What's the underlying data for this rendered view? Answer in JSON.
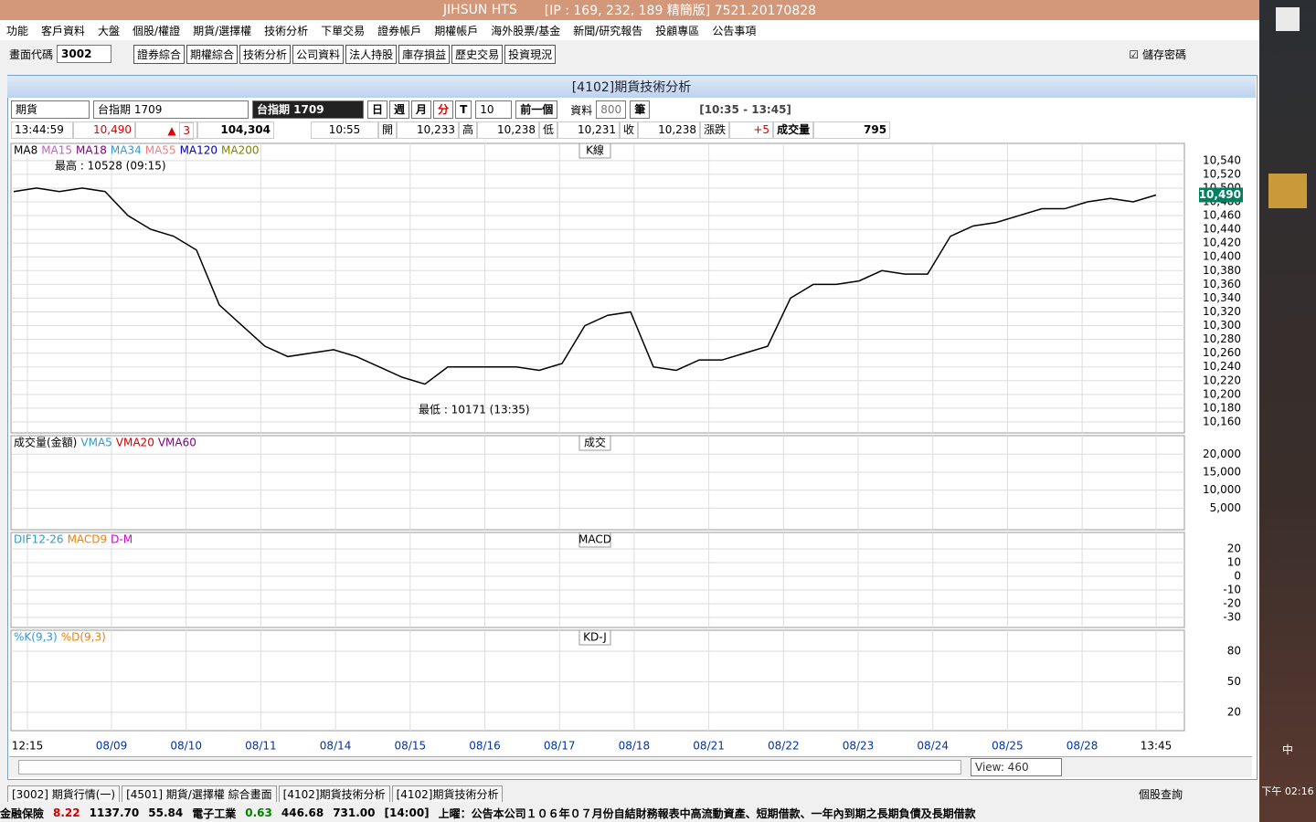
{
  "window": {
    "title": "JIHSUN HTS",
    "ip": "[IP : 169, 232, 189 精簡版] 7521.20170828"
  },
  "menu": [
    "功能",
    "客戶資料",
    "大盤",
    "個股/權證",
    "期貨/選擇權",
    "技術分析",
    "下單交易",
    "證券帳戶",
    "期權帳戶",
    "海外股票/基金",
    "新聞/研究報告",
    "投顧專區",
    "公告事項"
  ],
  "toolbar": {
    "label": "畫面代碼",
    "code": "3002",
    "buttons": [
      "證券綜合",
      "期權綜合",
      "技術分析",
      "公司資料",
      "法人持股",
      "庫存損益",
      "歷史交易",
      "投資現況"
    ],
    "save": "儲存密碼"
  },
  "panel": {
    "title": "[4102]期貨技術分析",
    "market": "期貨",
    "symbol": "台指期 1709",
    "symbol_box": "台指期 1709",
    "periods": [
      "日",
      "週",
      "月",
      "分",
      "T"
    ],
    "interval": "10",
    "prev": "前一個",
    "data_label": "資料",
    "data_count": "800",
    "unit": "筆",
    "range": "[10:35 - 13:45]"
  },
  "quote": {
    "time": "13:44:59",
    "price": "10,490",
    "change": "3",
    "volume_total": "104,304",
    "bar_time": "10:55",
    "open_label": "開",
    "open": "10,233",
    "high_label": "高",
    "high": "10,238",
    "low_label": "低",
    "low": "10,231",
    "close_label": "收",
    "close": "10,238",
    "chg_label": "漲跌",
    "chg": "+5",
    "vol_label": "成交量",
    "vol": "795"
  },
  "chart_data": [
    {
      "type": "line",
      "title": "K線",
      "legend": [
        {
          "name": "MA8",
          "color": "#000000"
        },
        {
          "name": "MA15",
          "color": "#c060c0"
        },
        {
          "name": "MA18",
          "color": "#800080"
        },
        {
          "name": "MA34",
          "color": "#3399cc"
        },
        {
          "name": "MA55",
          "color": "#f08080"
        },
        {
          "name": "MA120",
          "color": "#0000c0"
        },
        {
          "name": "MA200",
          "color": "#808000"
        }
      ],
      "high_note": "最高 : 10528 (09:15)",
      "low_note": "最低 : 10171 (13:35)",
      "last": 10490,
      "last_label": "10,490",
      "ylim": [
        10144,
        10565
      ],
      "yticks": [
        {
          "value": 10540,
          "label": "10,540"
        },
        {
          "value": 10520,
          "label": "10,520"
        },
        {
          "value": 10500,
          "label": "10,500"
        },
        {
          "value": 10480,
          "label": "10,480"
        },
        {
          "value": 10460,
          "label": "10,460"
        },
        {
          "value": 10440,
          "label": "10,440"
        },
        {
          "value": 10420,
          "label": "10,420"
        },
        {
          "value": 10400,
          "label": "10,400"
        },
        {
          "value": 10380,
          "label": "10,380"
        },
        {
          "value": 10360,
          "label": "10,360"
        },
        {
          "value": 10340,
          "label": "10,340"
        },
        {
          "value": 10320,
          "label": "10,320"
        },
        {
          "value": 10300,
          "label": "10,300"
        },
        {
          "value": 10280,
          "label": "10,280"
        },
        {
          "value": 10260,
          "label": "10,260"
        },
        {
          "value": 10240,
          "label": "10,240"
        },
        {
          "value": 10220,
          "label": "10,220"
        },
        {
          "value": 10200,
          "label": "10,200"
        },
        {
          "value": 10180,
          "label": "10,180"
        },
        {
          "value": 10160,
          "label": "10,160"
        }
      ],
      "series": [
        {
          "name": "MA8",
          "color": "#000000",
          "values": [
            10495,
            10500,
            10495,
            10500,
            10495,
            10460,
            10440,
            10430,
            10410,
            10330,
            10300,
            10270,
            10255,
            10260,
            10265,
            10255,
            10240,
            10225,
            10215,
            10240,
            10240,
            10240,
            10240,
            10235,
            10245,
            10300,
            10315,
            10320,
            10240,
            10235,
            10250,
            10250,
            10260,
            10270,
            10340,
            10360,
            10360,
            10365,
            10380,
            10375,
            10375,
            10430,
            10445,
            10450,
            10460,
            10470,
            10470,
            10480,
            10485,
            10480,
            10490
          ]
        }
      ]
    },
    {
      "type": "bar",
      "title": "成交",
      "legend": [
        {
          "name": "成交量(金額)",
          "color": "#000000"
        },
        {
          "name": "VMA5",
          "color": "#3399cc"
        },
        {
          "name": "VMA20",
          "color": "#d00000"
        },
        {
          "name": "VMA60",
          "color": "#800080"
        }
      ],
      "ylim": [
        -1000,
        25150
      ],
      "yticks": [
        {
          "value": 20000,
          "label": "20,000"
        },
        {
          "value": 15000,
          "label": "15,000"
        },
        {
          "value": 10000,
          "label": "10,000"
        },
        {
          "value": 5000,
          "label": "5,000"
        }
      ]
    },
    {
      "type": "line",
      "title": "MACD",
      "legend": [
        {
          "name": "DIF12-26",
          "color": "#3399cc"
        },
        {
          "name": "MACD9",
          "color": "#f08000"
        },
        {
          "name": "D-M",
          "color": "#d000d0"
        }
      ],
      "ylim": [
        -37.3,
        32
      ],
      "yticks": [
        20,
        10,
        0,
        -10,
        -20,
        -30
      ]
    },
    {
      "type": "line",
      "title": "KD-J",
      "legend": [
        {
          "name": "%K(9,3)",
          "color": "#3399cc"
        },
        {
          "name": "%D(9,3)",
          "color": "#f08000"
        }
      ],
      "ylim": [
        2,
        100.6
      ],
      "yticks": [
        80,
        50,
        20
      ]
    }
  ],
  "dates": [
    "12:15",
    "08/09",
    "08/10",
    "08/11",
    "08/14",
    "08/15",
    "08/16",
    "08/17",
    "08/18",
    "08/21",
    "08/22",
    "08/23",
    "08/24",
    "08/25",
    "08/28",
    "13:45"
  ],
  "view": "View: 460",
  "tabs": [
    "[3002] 期貨行情(一)",
    "[4501] 期貨/選擇權 綜合畫面",
    "[4102]期貨技術分析",
    "[4102]期貨技術分析"
  ],
  "search": "個股查詢",
  "status": [
    {
      "text": "金融保險",
      "color": "#000"
    },
    {
      "text": "8.22",
      "color": "#d00000"
    },
    {
      "text": "1137.70",
      "color": "#000"
    },
    {
      "text": "55.84",
      "color": "#000"
    },
    {
      "text": "電子工業",
      "color": "#000"
    },
    {
      "text": "0.63",
      "color": "#008000"
    },
    {
      "text": "446.68",
      "color": "#000"
    },
    {
      "text": "731.00",
      "color": "#000"
    },
    {
      "text": "[14:00]",
      "color": "#000"
    },
    {
      "text": "上曜：公告本公司１０６年０７月份自結財務報表中高流動資產、短期借款、一年內到期之長期負債及長期借款",
      "color": "#000"
    }
  ],
  "clock": "下午 02:16",
  "ime": "中"
}
